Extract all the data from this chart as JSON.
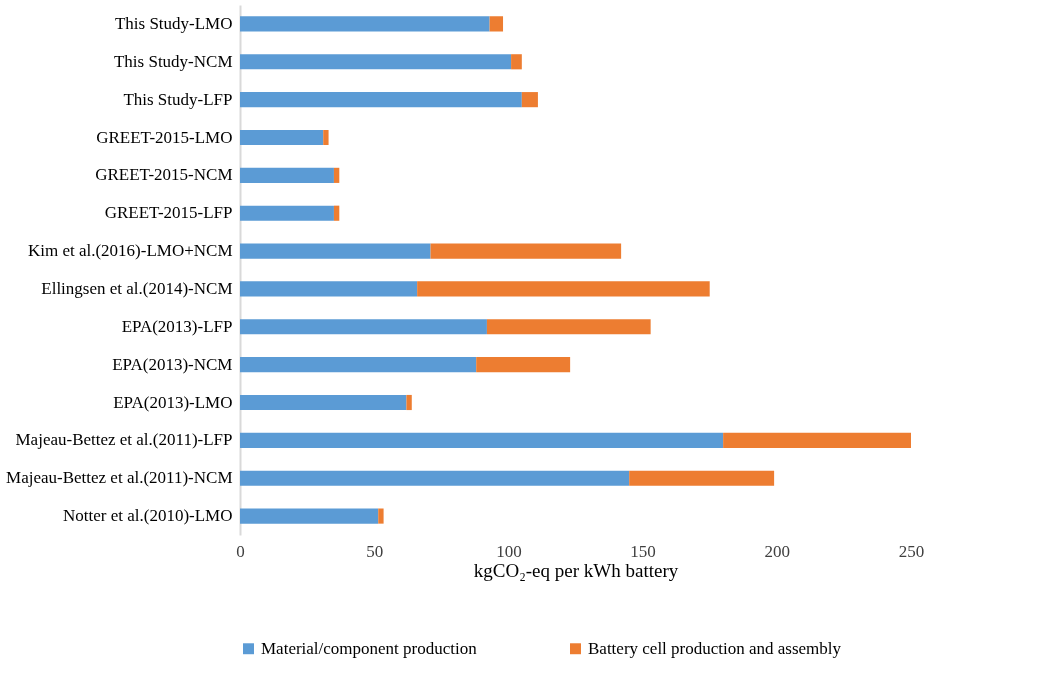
{
  "chart_data": {
    "type": "bar",
    "orientation": "horizontal",
    "stacked": true,
    "categories": [
      "This Study-LMO",
      "This Study-NCM",
      "This Study-LFP",
      "GREET-2015-LMO",
      "GREET-2015-NCM",
      "GREET-2015-LFP",
      "Kim et al.(2016)-LMO+NCM",
      "Ellingsen et al.(2014)-NCM",
      "EPA(2013)-LFP",
      "EPA(2013)-NCM",
      "EPA(2013)-LMO",
      "Majeau-Bettez et al.(2011)-LFP",
      "Majeau-Bettez et al.(2011)-NCM",
      "Notter et al.(2010)-LMO"
    ],
    "series": [
      {
        "name": "Material/component production",
        "color": "#5b9bd5",
        "values": [
          93,
          101,
          105,
          31,
          35,
          35,
          71,
          66,
          92,
          88,
          62,
          180,
          145,
          51.5
        ]
      },
      {
        "name": "Battery cell production and assembly",
        "color": "#ed7d31",
        "values": [
          5,
          4,
          6,
          2,
          2,
          2,
          71,
          109,
          61,
          35,
          2,
          70,
          54,
          2
        ]
      }
    ],
    "xlim": [
      0,
      250
    ],
    "xticks": [
      0,
      50,
      100,
      150,
      200,
      250
    ],
    "xlabel": "kgCO₂-eq per kWh battery",
    "grid": false,
    "legend": "bottom"
  }
}
